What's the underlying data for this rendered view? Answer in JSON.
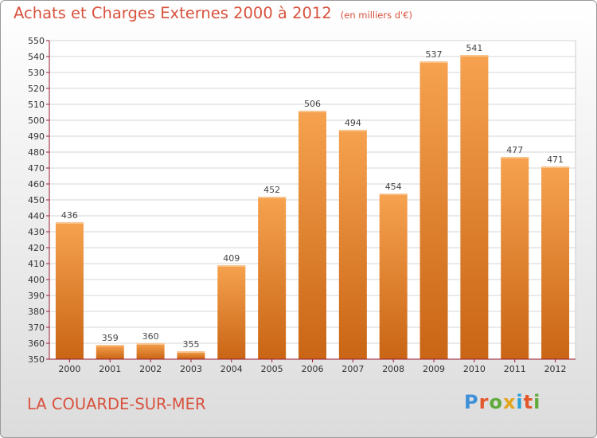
{
  "header": {
    "title": "Achats et Charges Externes 2000 à 2012",
    "subtitle": "(en milliers d'€)"
  },
  "footer": {
    "town": "LA COUARDE-SUR-MER",
    "logo": "Proxiti"
  },
  "colors": {
    "bar_light": "#f6a24f",
    "bar_dark": "#c96514",
    "title": "#d8523e",
    "axis": "#9a1b2c"
  },
  "logo_colors": [
    "#3d8fd9",
    "#e2572c",
    "#5faa3b",
    "#e2a51c",
    "#2aa1d6",
    "#e2572c",
    "#5faa3b"
  ],
  "chart_data": {
    "type": "bar",
    "title": "Achats et Charges Externes 2000 à 2012",
    "subtitle": "(en milliers d'€)",
    "categories": [
      "2000",
      "2001",
      "2002",
      "2003",
      "2004",
      "2005",
      "2006",
      "2007",
      "2008",
      "2009",
      "2010",
      "2011",
      "2012"
    ],
    "values": [
      436,
      359,
      360,
      355,
      409,
      452,
      506,
      494,
      454,
      537,
      541,
      477,
      471
    ],
    "ylim": [
      350,
      550
    ],
    "ytick_step": 10,
    "grid": true,
    "data_labels": true,
    "xlabel": "",
    "ylabel": ""
  }
}
